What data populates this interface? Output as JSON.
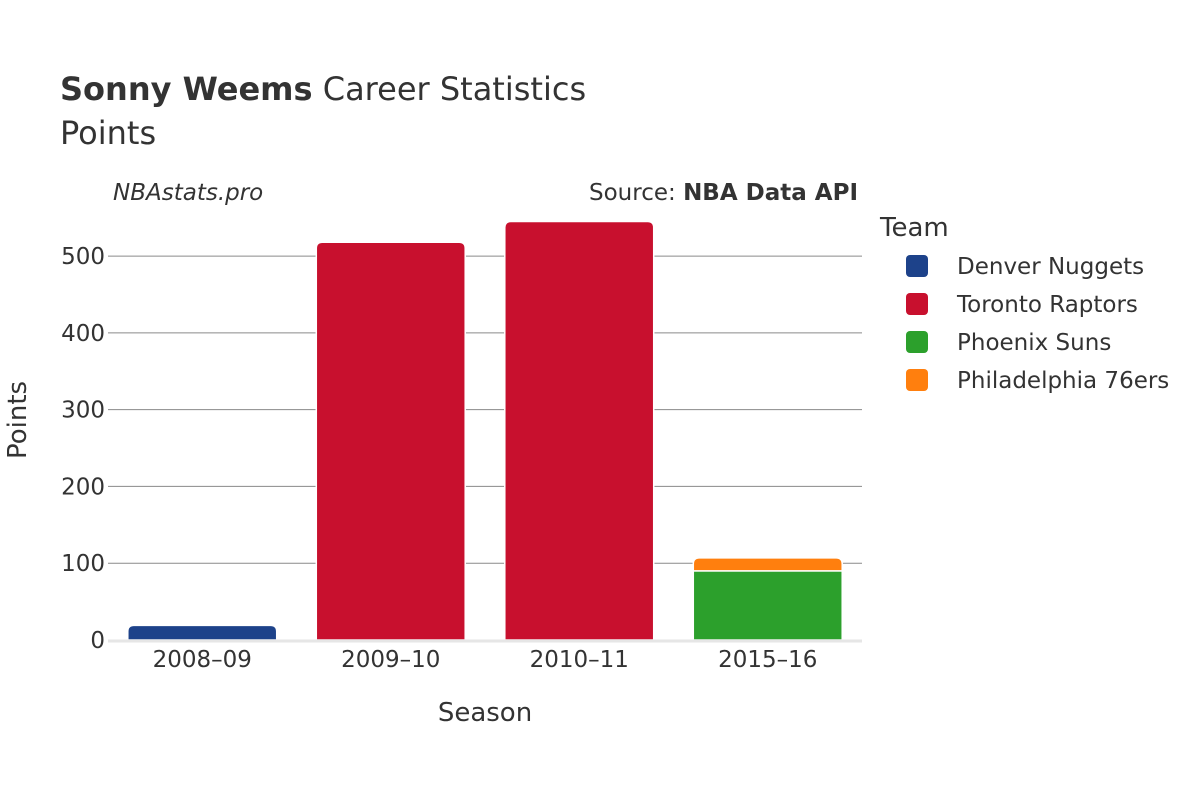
{
  "title": {
    "bold": "Sonny Weems",
    "rest": " Career Statistics",
    "subtitle": "Points"
  },
  "brand": "NBAstats.pro",
  "source": {
    "prefix": "Source: ",
    "name": "NBA Data API"
  },
  "legend": {
    "title": "Team"
  },
  "chart_data": {
    "type": "bar",
    "stacked": true,
    "categories": [
      "2008–09",
      "2009–10",
      "2010–11",
      "2015–16"
    ],
    "xlabel": "Season",
    "ylabel": "Points",
    "ylim": [
      0,
      560
    ],
    "yticks": [
      0,
      100,
      200,
      300,
      400,
      500
    ],
    "grid": true,
    "legend_position": "right",
    "series": [
      {
        "name": "Denver Nuggets",
        "color": "#1d428a",
        "values": [
          19,
          0,
          0,
          0
        ]
      },
      {
        "name": "Toronto Raptors",
        "color": "#c8102e",
        "values": [
          0,
          518,
          545,
          0
        ]
      },
      {
        "name": "Phoenix Suns",
        "color": "#2ca02c",
        "values": [
          0,
          0,
          0,
          90
        ]
      },
      {
        "name": "Philadelphia 76ers",
        "color": "#ff7f0e",
        "values": [
          0,
          0,
          0,
          17
        ]
      }
    ]
  }
}
